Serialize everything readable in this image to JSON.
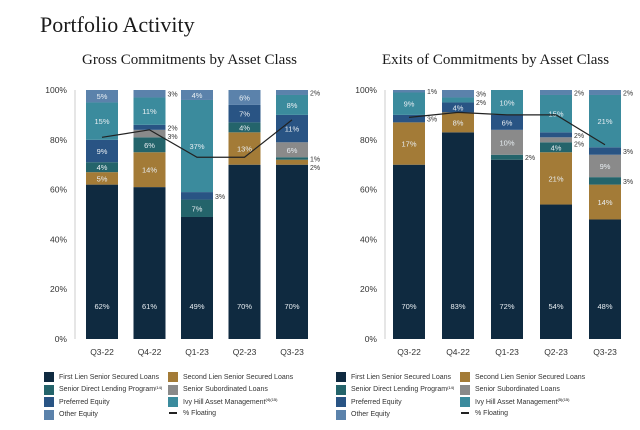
{
  "title": "Portfolio Activity",
  "colors": {
    "First Lien Senior Secured Loans": "#0f2a40",
    "Second Lien Senior Secured Loans": "#a37b37",
    "Senior Direct Lending Program": "#24646b",
    "Senior Subordinated Loans": "#8a8a8a",
    "Preferred Equity": "#295484",
    "Ivy Hill Asset Management": "#3b8b9d",
    "Other Equity": "#5b82ab",
    "% Floating": "#222222"
  },
  "chart_data": [
    {
      "type": "bar",
      "stacked": true,
      "title": "Gross Commitments by Asset Class",
      "categories": [
        "Q3-22",
        "Q4-22",
        "Q1-23",
        "Q2-23",
        "Q3-23"
      ],
      "ylim": [
        0,
        100
      ],
      "yticks": [
        "0%",
        "20%",
        "40%",
        "60%",
        "80%",
        "100%"
      ],
      "series": [
        {
          "name": "First Lien Senior Secured Loans",
          "values": [
            62,
            61,
            49,
            70,
            70
          ]
        },
        {
          "name": "Second Lien Senior Secured Loans",
          "values": [
            5,
            14,
            0,
            13,
            2
          ]
        },
        {
          "name": "Senior Direct Lending Program",
          "values": [
            4,
            6,
            7,
            4,
            1
          ]
        },
        {
          "name": "Senior Subordinated Loans",
          "values": [
            0,
            3,
            0,
            0,
            6
          ]
        },
        {
          "name": "Preferred Equity",
          "values": [
            9,
            2,
            3,
            7,
            11
          ]
        },
        {
          "name": "Ivy Hill Asset Management",
          "values": [
            15,
            11,
            37,
            0,
            8
          ]
        },
        {
          "name": "Other Equity",
          "values": [
            5,
            3,
            4,
            6,
            2
          ]
        }
      ],
      "line": {
        "name": "% Floating",
        "values": [
          81,
          84,
          73,
          73,
          88
        ]
      },
      "legend": [
        "First Lien Senior Secured Loans",
        "Second Lien Senior Secured Loans",
        "Senior Direct Lending Program",
        "Senior Subordinated Loans",
        "Preferred Equity",
        "Ivy Hill Asset Management",
        "Other Equity",
        "% Floating"
      ],
      "footnotes": {
        "Senior Direct Lending Program": "(14)",
        "Ivy Hill Asset Management": "(4)(15)"
      }
    },
    {
      "type": "bar",
      "stacked": true,
      "title": "Exits of Commitments by Asset Class",
      "categories": [
        "Q3-22",
        "Q4-22",
        "Q1-23",
        "Q2-23",
        "Q3-23"
      ],
      "ylim": [
        0,
        100
      ],
      "yticks": [
        "0%",
        "20%",
        "40%",
        "60%",
        "80%",
        "100%"
      ],
      "series": [
        {
          "name": "First Lien Senior Secured Loans",
          "values": [
            70,
            83,
            72,
            54,
            48
          ]
        },
        {
          "name": "Second Lien Senior Secured Loans",
          "values": [
            17,
            8,
            0,
            21,
            14
          ]
        },
        {
          "name": "Senior Direct Lending Program",
          "values": [
            0,
            0,
            2,
            4,
            3
          ]
        },
        {
          "name": "Senior Subordinated Loans",
          "values": [
            0,
            0,
            10,
            2,
            9
          ]
        },
        {
          "name": "Preferred Equity",
          "values": [
            3,
            4,
            6,
            2,
            3
          ]
        },
        {
          "name": "Ivy Hill Asset Management",
          "values": [
            9,
            2,
            10,
            15,
            21
          ]
        },
        {
          "name": "Other Equity",
          "values": [
            1,
            3,
            0,
            2,
            2
          ]
        }
      ],
      "line": {
        "name": "% Floating",
        "values": [
          89,
          91,
          90,
          90,
          78
        ]
      },
      "legend": [
        "First Lien Senior Secured Loans",
        "Second Lien Senior Secured Loans",
        "Senior Direct Lending Program",
        "Senior Subordinated Loans",
        "Preferred Equity",
        "Ivy Hill Asset Management",
        "Other Equity",
        "% Floating"
      ],
      "footnotes": {
        "Senior Direct Lending Program": "(14)",
        "Ivy Hill Asset Management": "(5)(15)"
      }
    }
  ]
}
